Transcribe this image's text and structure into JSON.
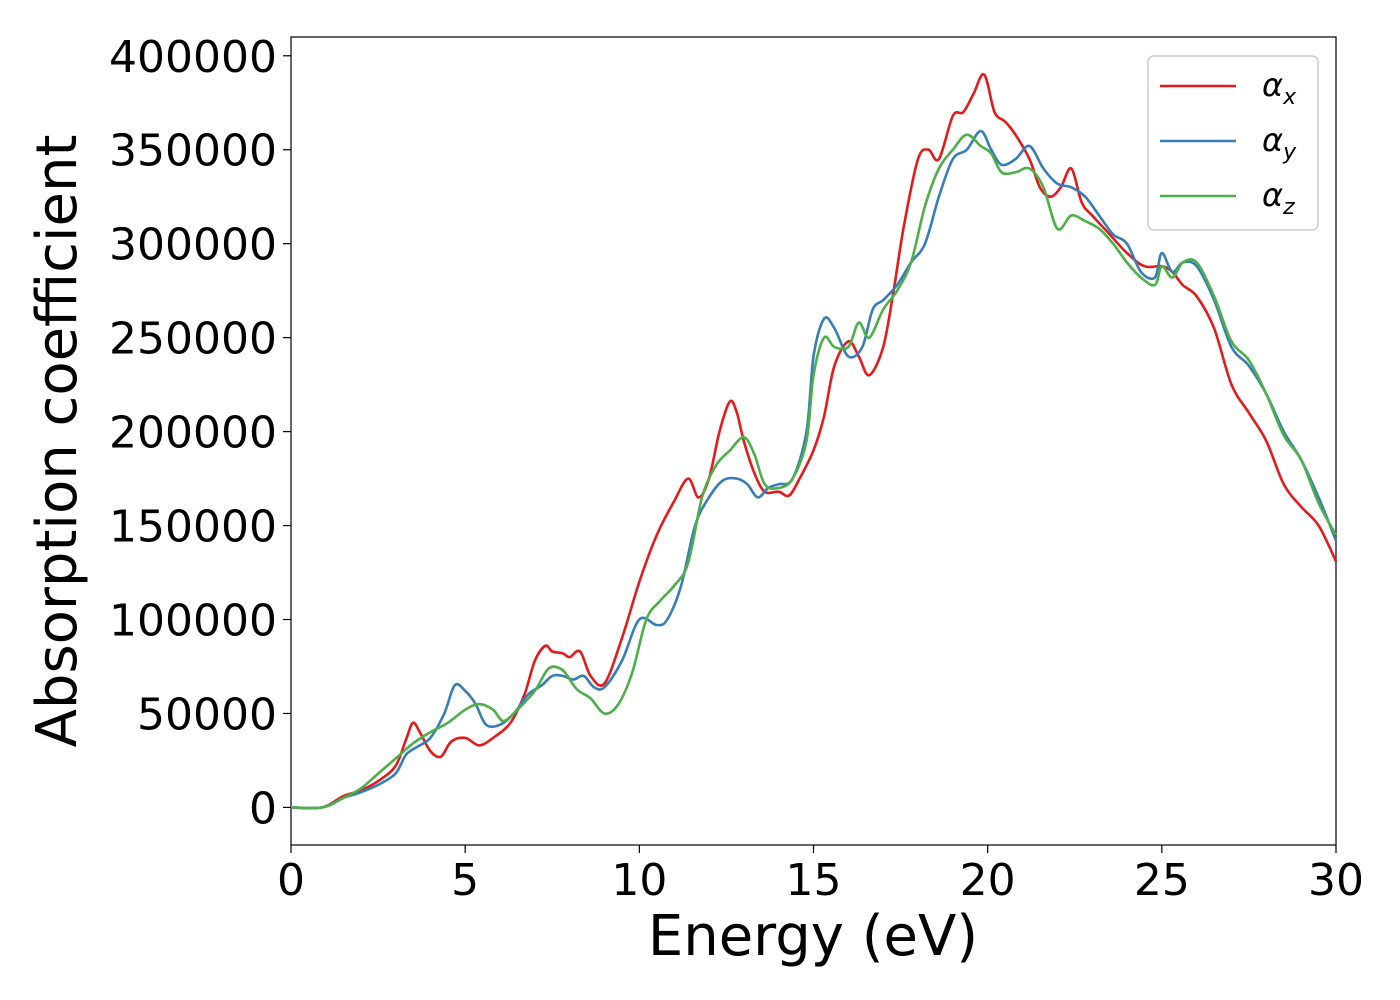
{
  "chart_data": {
    "type": "line",
    "xlabel": "Energy (eV)",
    "ylabel": "Absorption coefficient",
    "xlim": [
      0,
      30
    ],
    "ylim": [
      -20000,
      410000
    ],
    "xticks": [
      0,
      5,
      10,
      15,
      20,
      25,
      30
    ],
    "yticks": [
      0,
      50000,
      100000,
      150000,
      200000,
      250000,
      300000,
      350000,
      400000
    ],
    "grid": false,
    "legend_position": "top-right",
    "series": [
      {
        "name": "α",
        "subscript": "x",
        "color": "#e41a1c",
        "x": [
          0,
          0.9,
          1.5,
          2,
          2.5,
          3,
          3.3,
          3.5,
          3.7,
          4,
          4.3,
          4.6,
          5,
          5.4,
          5.8,
          6.3,
          6.7,
          7,
          7.3,
          7.5,
          7.8,
          8,
          8.3,
          8.6,
          9,
          9.5,
          10,
          10.5,
          11,
          11.4,
          11.7,
          12,
          12.3,
          12.6,
          12.8,
          13,
          13.3,
          13.6,
          14,
          14.3,
          14.6,
          15,
          15.3,
          15.6,
          16,
          16.3,
          16.6,
          17,
          17.3,
          17.6,
          18,
          18.3,
          18.6,
          19,
          19.3,
          19.6,
          19.9,
          20.2,
          20.5,
          20.8,
          21.2,
          21.5,
          21.8,
          22.1,
          22.4,
          22.7,
          23,
          23.5,
          24,
          24.5,
          25,
          25.3,
          25.6,
          26,
          26.5,
          27,
          27.5,
          28,
          28.5,
          29,
          29.5,
          30
        ],
        "y": [
          0,
          0,
          6000,
          9000,
          14000,
          22000,
          36000,
          45000,
          40000,
          30000,
          27000,
          35000,
          37000,
          33000,
          37000,
          45000,
          60000,
          78000,
          86000,
          83000,
          82000,
          80000,
          83000,
          70000,
          66000,
          90000,
          120000,
          145000,
          163000,
          175000,
          165000,
          175000,
          200000,
          216000,
          210000,
          195000,
          178000,
          168000,
          168000,
          166000,
          175000,
          190000,
          208000,
          235000,
          248000,
          240000,
          230000,
          245000,
          275000,
          310000,
          345000,
          350000,
          345000,
          368000,
          370000,
          380000,
          390000,
          370000,
          365000,
          358000,
          345000,
          330000,
          325000,
          330000,
          340000,
          322000,
          315000,
          305000,
          295000,
          288000,
          288000,
          285000,
          278000,
          272000,
          255000,
          225000,
          210000,
          195000,
          172000,
          160000,
          150000,
          131000
        ]
      },
      {
        "name": "α",
        "subscript": "y",
        "color": "#377eb8",
        "x": [
          0,
          0.9,
          1.5,
          2,
          2.5,
          3,
          3.3,
          3.6,
          4,
          4.4,
          4.7,
          5,
          5.3,
          5.6,
          6,
          6.4,
          6.8,
          7.2,
          7.5,
          7.8,
          8.1,
          8.4,
          8.7,
          9,
          9.5,
          10,
          10.5,
          10.8,
          11.2,
          11.6,
          12,
          12.4,
          12.8,
          13.1,
          13.4,
          13.7,
          14,
          14.4,
          14.8,
          15,
          15.3,
          15.6,
          16,
          16.4,
          16.7,
          17,
          17.4,
          17.8,
          18.2,
          18.6,
          19,
          19.4,
          19.8,
          20.1,
          20.4,
          20.8,
          21.2,
          21.6,
          22,
          22.4,
          22.8,
          23.2,
          23.6,
          24,
          24.4,
          24.8,
          25,
          25.3,
          25.6,
          26,
          26.5,
          27,
          27.5,
          28,
          28.5,
          29,
          29.5,
          30
        ],
        "y": [
          0,
          0,
          5000,
          8000,
          12000,
          18000,
          28000,
          32000,
          37000,
          50000,
          65000,
          62000,
          55000,
          44000,
          44000,
          50000,
          60000,
          65000,
          70000,
          70000,
          68000,
          70000,
          64000,
          64000,
          78000,
          100000,
          97000,
          100000,
          118000,
          150000,
          165000,
          174000,
          175000,
          172000,
          165000,
          170000,
          172000,
          175000,
          200000,
          240000,
          260000,
          255000,
          240000,
          245000,
          265000,
          270000,
          278000,
          290000,
          300000,
          325000,
          345000,
          350000,
          360000,
          350000,
          342000,
          345000,
          352000,
          340000,
          332000,
          330000,
          325000,
          315000,
          305000,
          300000,
          285000,
          282000,
          295000,
          285000,
          290000,
          288000,
          270000,
          245000,
          235000,
          220000,
          200000,
          185000,
          165000,
          142000
        ]
      },
      {
        "name": "α",
        "subscript": "z",
        "color": "#4daf4a",
        "x": [
          0,
          0.9,
          1.5,
          2,
          2.5,
          3,
          3.5,
          4,
          4.5,
          5,
          5.4,
          5.8,
          6.1,
          6.5,
          7,
          7.4,
          7.8,
          8.2,
          8.6,
          9,
          9.4,
          9.8,
          10.2,
          10.6,
          11,
          11.4,
          11.8,
          12.2,
          12.6,
          13,
          13.3,
          13.6,
          14,
          14.4,
          14.8,
          15,
          15.3,
          15.6,
          16,
          16.3,
          16.6,
          17,
          17.4,
          17.8,
          18.2,
          18.6,
          19,
          19.4,
          19.8,
          20.1,
          20.4,
          20.8,
          21.2,
          21.6,
          22,
          22.4,
          22.8,
          23.2,
          23.6,
          24,
          24.4,
          24.8,
          25,
          25.3,
          25.6,
          26,
          26.5,
          27,
          27.5,
          28,
          28.5,
          29,
          29.5,
          30
        ],
        "y": [
          0,
          0,
          5000,
          10000,
          18000,
          26000,
          34000,
          40000,
          45000,
          52000,
          55000,
          52000,
          46000,
          52000,
          62000,
          74000,
          73000,
          63000,
          58000,
          50000,
          55000,
          72000,
          100000,
          110000,
          118000,
          130000,
          165000,
          182000,
          190000,
          197000,
          188000,
          172000,
          170000,
          175000,
          195000,
          230000,
          250000,
          245000,
          245000,
          258000,
          250000,
          265000,
          275000,
          290000,
          320000,
          340000,
          350000,
          358000,
          352000,
          348000,
          338000,
          338000,
          340000,
          330000,
          308000,
          315000,
          312000,
          308000,
          300000,
          290000,
          282000,
          278000,
          288000,
          282000,
          290000,
          290000,
          272000,
          248000,
          238000,
          220000,
          198000,
          185000,
          162000,
          145000
        ]
      }
    ]
  }
}
